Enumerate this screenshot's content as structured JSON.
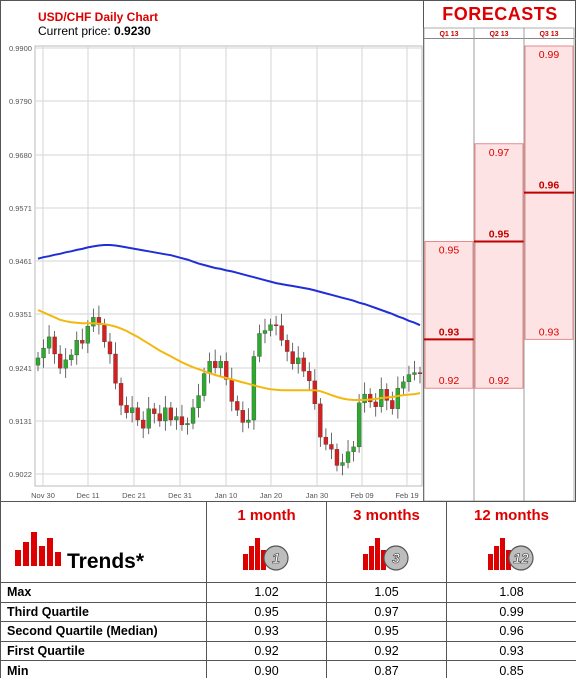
{
  "header": {
    "title": "USD/CHF Daily Chart",
    "price_label": "Current price:",
    "price_value": "0.9230",
    "forecasts_title": "FORECASTS"
  },
  "colors": {
    "accent": "#d00000",
    "up_candle": "#2ea82e",
    "down_candle": "#d42020",
    "ma_long": "#1f2ed6",
    "ma_short": "#f2b80c",
    "forecast_fill": "#fde3e3",
    "forecast_line": "#e07070"
  },
  "chart_data": [
    {
      "type": "candlestick",
      "title": "USD/CHF Daily Chart",
      "xlabel": "",
      "ylabel": "",
      "ylim": [
        0.9,
        0.99
      ],
      "y_ticks": [
        "0.9900",
        "0.9790",
        "0.9680",
        "0.9571",
        "0.9461",
        "0.9351",
        "0.9241",
        "0.9131",
        "0.9022"
      ],
      "x_ticks": [
        "Nov 30",
        "Dec 11",
        "Dec 21",
        "Dec 31",
        "Jan 10",
        "Jan 20",
        "Jan 30",
        "Feb 09",
        "Feb 19"
      ],
      "grid": true,
      "close": [
        0.9262,
        0.9282,
        0.9305,
        0.927,
        0.9241,
        0.9258,
        0.9268,
        0.9298,
        0.9292,
        0.9327,
        0.9345,
        0.933,
        0.9295,
        0.927,
        0.921,
        0.9165,
        0.915,
        0.916,
        0.9135,
        0.9118,
        0.9158,
        0.9148,
        0.9133,
        0.916,
        0.9135,
        0.9142,
        0.9125,
        0.9128,
        0.916,
        0.9185,
        0.923,
        0.9255,
        0.9242,
        0.9255,
        0.9218,
        0.9173,
        0.9155,
        0.913,
        0.9135,
        0.9265,
        0.9312,
        0.9318,
        0.933,
        0.9328,
        0.9298,
        0.9275,
        0.925,
        0.9262,
        0.9235,
        0.9215,
        0.9168,
        0.91,
        0.9085,
        0.9075,
        0.9042,
        0.9048,
        0.907,
        0.908,
        0.917,
        0.9188,
        0.9172,
        0.9162,
        0.9198,
        0.9175,
        0.9158,
        0.92,
        0.9213,
        0.9228,
        0.9232,
        0.923
      ],
      "series": [
        {
          "name": "",
          "values": [
            0.9465,
            0.9468,
            0.947,
            0.9473,
            0.9475,
            0.9478,
            0.948,
            0.9483,
            0.9485,
            0.9488,
            0.949,
            0.9492,
            0.9493,
            0.9493,
            0.9492,
            0.949,
            0.9488,
            0.9486,
            0.9484,
            0.9482,
            0.948,
            0.9478,
            0.9476,
            0.9474,
            0.9472,
            0.9469,
            0.9466,
            0.9463,
            0.9459,
            0.9455,
            0.9452,
            0.9449,
            0.9446,
            0.9444,
            0.9441,
            0.9439,
            0.9436,
            0.9433,
            0.943,
            0.9427,
            0.9424,
            0.9421,
            0.9418,
            0.9415,
            0.9413,
            0.9411,
            0.9409,
            0.9407,
            0.9405,
            0.9403,
            0.94,
            0.9397,
            0.9394,
            0.9391,
            0.9388,
            0.9385,
            0.9382,
            0.9379,
            0.9375,
            0.9372,
            0.9368,
            0.9364,
            0.936,
            0.9356,
            0.9352,
            0.9347,
            0.9343,
            0.9338,
            0.9334,
            0.9329
          ]
        },
        {
          "name": "",
          "values": [
            0.936,
            0.9355,
            0.935,
            0.9345,
            0.934,
            0.9337,
            0.9335,
            0.9334,
            0.9333,
            0.9333,
            0.9333,
            0.9332,
            0.9331,
            0.9329,
            0.9326,
            0.9322,
            0.9317,
            0.9311,
            0.9305,
            0.9298,
            0.9291,
            0.9284,
            0.9277,
            0.9271,
            0.9265,
            0.9259,
            0.9253,
            0.9248,
            0.9243,
            0.9239,
            0.9235,
            0.9231,
            0.9227,
            0.9224,
            0.9221,
            0.9218,
            0.9215,
            0.9212,
            0.9209,
            0.9206,
            0.9203,
            0.92,
            0.9198,
            0.9197,
            0.9196,
            0.9196,
            0.9196,
            0.9196,
            0.9196,
            0.9196,
            0.9196,
            0.9194,
            0.919,
            0.9186,
            0.9182,
            0.9179,
            0.9177,
            0.9176,
            0.9176,
            0.9176,
            0.9177,
            0.9178,
            0.918,
            0.9181,
            0.9182,
            0.9184,
            0.9186,
            0.9187,
            0.9188,
            0.919
          ]
        }
      ]
    },
    {
      "type": "bar",
      "title": "FORECASTS",
      "categories": [
        "Q1 13",
        "Q2 13",
        "Q3 13"
      ],
      "ylim": [
        0.9,
        0.99
      ],
      "series": [
        {
          "name": "",
          "values": [
            0.95,
            0.97,
            0.99
          ]
        },
        {
          "name": "",
          "values": [
            0.93,
            0.95,
            0.96
          ]
        },
        {
          "name": "",
          "values": [
            0.92,
            0.92,
            0.93
          ]
        }
      ]
    },
    {
      "type": "table",
      "title": "Trends*",
      "columns": [
        "1 month",
        "3 months",
        "12 months"
      ],
      "column_badges": [
        "1",
        "3",
        "12"
      ],
      "rows": [
        {
          "label": "Max",
          "values": [
            "1.02",
            "1.05",
            "1.08"
          ]
        },
        {
          "label": "Third Quartile",
          "values": [
            "0.95",
            "0.97",
            "0.99"
          ]
        },
        {
          "label": "Second Quartile (Median)",
          "values": [
            "0.93",
            "0.95",
            "0.96"
          ]
        },
        {
          "label": "First Quartile",
          "values": [
            "0.92",
            "0.92",
            "0.93"
          ]
        },
        {
          "label": "Min",
          "values": [
            "0.90",
            "0.87",
            "0.85"
          ]
        }
      ]
    }
  ]
}
